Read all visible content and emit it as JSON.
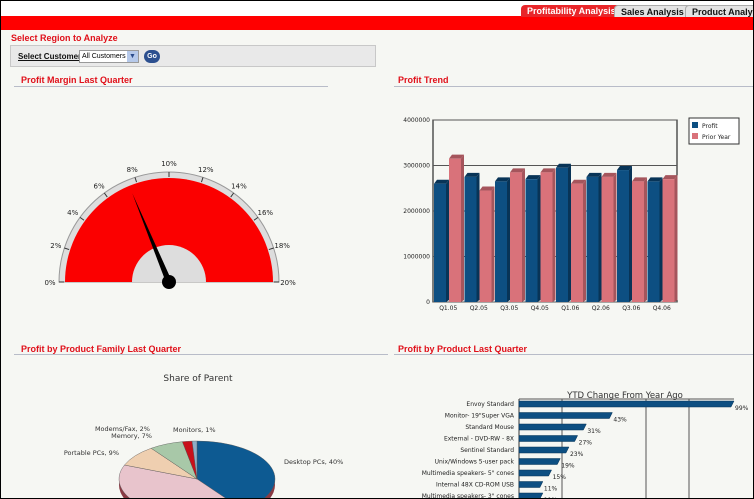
{
  "tabs": [
    {
      "label": "Profitability Analysis",
      "active": true
    },
    {
      "label": "Sales Analysis",
      "active": false
    },
    {
      "label": "Product Analysis",
      "active": false
    }
  ],
  "region": {
    "title": "Select Region to Analyze",
    "customer_label": "Select Customer",
    "customer_value": "All Customers",
    "go_label": "Go"
  },
  "sections": {
    "margin": "Profit Margin Last Quarter",
    "trend": "Profit Trend",
    "family": "Profit by Product Family Last Quarter",
    "product": "Profit by Product Last Quarter"
  },
  "colors": {
    "brand": "#ff0000",
    "profit": "#0d4f82",
    "prior": "#d9727a"
  },
  "chart_data": [
    {
      "type": "gauge",
      "min": 0,
      "max": 20,
      "unit": "%",
      "tick_labels": [
        "0%",
        "2%",
        "4%",
        "6%",
        "8%",
        "10%",
        "12%",
        "14%",
        "16%",
        "18%",
        "20%"
      ],
      "value": 7.5
    },
    {
      "type": "bar",
      "categories": [
        "Q1.05",
        "Q2.05",
        "Q3.05",
        "Q4.05",
        "Q1.06",
        "Q2.06",
        "Q3.06",
        "Q4.06"
      ],
      "series": [
        {
          "name": "Profit",
          "values": [
            2600000,
            2750000,
            2650000,
            2700000,
            2950000,
            2750000,
            2900000,
            2650000
          ]
        },
        {
          "name": "Prior Year",
          "values": [
            3150000,
            2450000,
            2850000,
            2850000,
            2600000,
            2750000,
            2650000,
            2700000
          ]
        }
      ],
      "ylim": [
        0,
        4000000
      ],
      "yticks": [
        "0",
        "1000000",
        "2000000",
        "3000000",
        "4000000"
      ],
      "legend": "right",
      "grid": true
    },
    {
      "type": "pie",
      "title": "Share of Parent",
      "slices": [
        {
          "label": "Desktop PCs, 40%",
          "value": 40,
          "color": "#0d5a92"
        },
        {
          "label": "",
          "value": 41,
          "color": "#e8c4cc"
        },
        {
          "label": "Portable PCs, 9%",
          "value": 9,
          "color": "#efcfb0"
        },
        {
          "label": "Memory, 7%",
          "value": 7,
          "color": "#a8c8a8"
        },
        {
          "label": "Modems/Fax, 2%",
          "value": 2,
          "color": "#c8101a"
        },
        {
          "label": "Monitors, 1%",
          "value": 1,
          "color": "#8eaec6"
        }
      ]
    },
    {
      "type": "bar",
      "orientation": "horizontal",
      "title": "YTD Change From Year Ago",
      "categories": [
        "Envoy Standard",
        "Monitor- 19\"Super VGA",
        "Standard Mouse",
        "External - DVD-RW - 8X",
        "Sentinel Standard",
        "Unix/Windows 5-user pack",
        "Multimedia speakers- 5\" cones",
        "Internal 48X CD-ROM USB",
        "Multimedia speakers- 3\" cones"
      ],
      "values": [
        99,
        43,
        31,
        27,
        23,
        19,
        15,
        11,
        11
      ],
      "data_labels": [
        "99%",
        "43%",
        "31%",
        "27%",
        "23%",
        "19%",
        "15%",
        "11%",
        "11%"
      ]
    }
  ]
}
